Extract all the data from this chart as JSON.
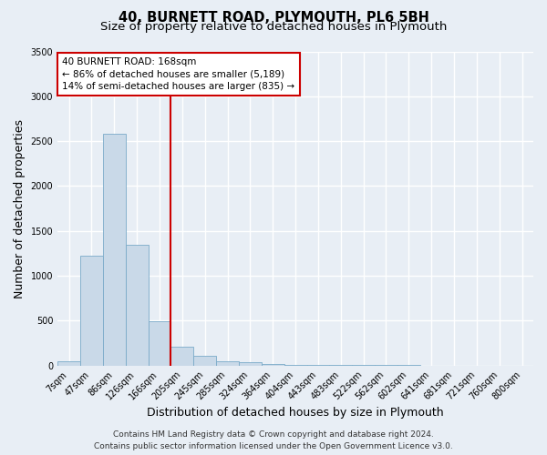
{
  "title_line1": "40, BURNETT ROAD, PLYMOUTH, PL6 5BH",
  "title_line2": "Size of property relative to detached houses in Plymouth",
  "xlabel": "Distribution of detached houses by size in Plymouth",
  "ylabel": "Number of detached properties",
  "categories": [
    "7sqm",
    "47sqm",
    "86sqm",
    "126sqm",
    "166sqm",
    "205sqm",
    "245sqm",
    "285sqm",
    "324sqm",
    "364sqm",
    "404sqm",
    "443sqm",
    "483sqm",
    "522sqm",
    "562sqm",
    "602sqm",
    "641sqm",
    "681sqm",
    "721sqm",
    "760sqm",
    "800sqm"
  ],
  "values": [
    50,
    1220,
    2580,
    1340,
    490,
    210,
    110,
    50,
    35,
    20,
    10,
    5,
    3,
    2,
    1,
    1,
    0,
    0,
    0,
    0,
    0
  ],
  "bar_color": "#c9d9e8",
  "bar_edge_color": "#7aaac8",
  "vline_x_index": 4,
  "vline_color": "#cc0000",
  "annotation_text": "40 BURNETT ROAD: 168sqm\n← 86% of detached houses are smaller (5,189)\n14% of semi-detached houses are larger (835) →",
  "annotation_box_color": "#ffffff",
  "annotation_box_edge": "#cc0000",
  "ylim": [
    0,
    3500
  ],
  "yticks": [
    0,
    500,
    1000,
    1500,
    2000,
    2500,
    3000,
    3500
  ],
  "footer_line1": "Contains HM Land Registry data © Crown copyright and database right 2024.",
  "footer_line2": "Contains public sector information licensed under the Open Government Licence v3.0.",
  "background_color": "#e8eef5",
  "plot_bg_color": "#e8eef5",
  "grid_color": "#ffffff",
  "title_fontsize": 10.5,
  "subtitle_fontsize": 9.5,
  "ylabel_fontsize": 9,
  "xlabel_fontsize": 9,
  "tick_fontsize": 7,
  "annotation_fontsize": 7.5,
  "footer_fontsize": 6.5
}
